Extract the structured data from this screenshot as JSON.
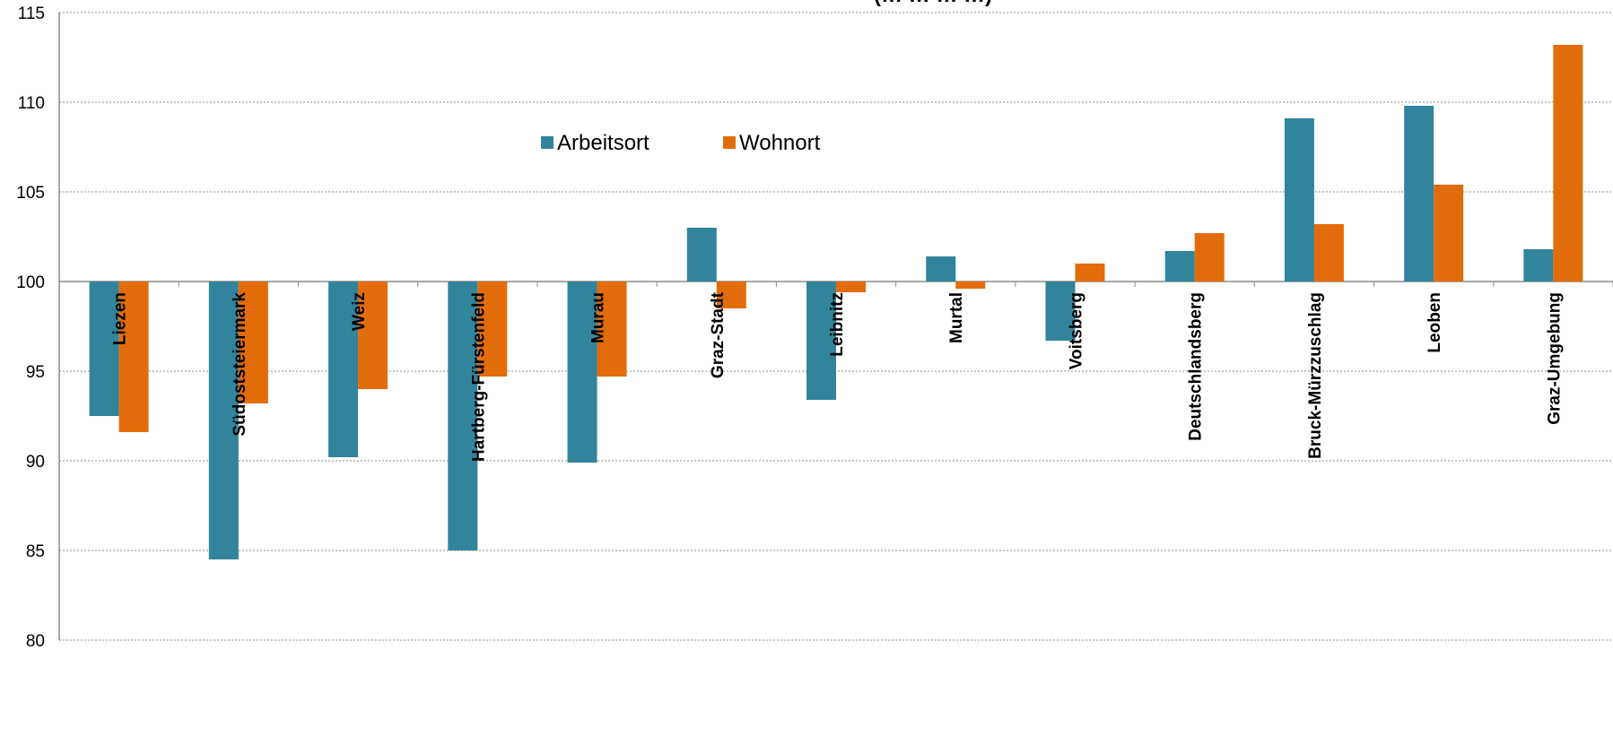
{
  "chart_data": {
    "type": "bar",
    "title": "(… … … …)",
    "xlabel": "",
    "ylabel": "",
    "ylim": [
      80,
      115
    ],
    "yticks": [
      80,
      85,
      90,
      95,
      100,
      105,
      110,
      115
    ],
    "baseline": 100,
    "grid": true,
    "legend_position": "top-center",
    "categories": [
      "Liezen",
      "Südoststeiermark",
      "Weiz",
      "Hartberg-Fürstenfeld",
      "Murau",
      "Graz-Stadt",
      "Leibnitz",
      "Murtal",
      "Voitsberg",
      "Deutschlandsberg",
      "Bruck-Mürzzuschlag",
      "Leoben",
      "Graz-Umgebung"
    ],
    "series": [
      {
        "name": "Arbeitsort",
        "color": "#31849b",
        "values": [
          92.5,
          84.5,
          90.2,
          85.0,
          89.9,
          103.0,
          93.4,
          101.4,
          96.7,
          101.7,
          109.1,
          109.8,
          101.8
        ]
      },
      {
        "name": "Wohnort",
        "color": "#e36c0a",
        "values": [
          91.6,
          93.2,
          94.0,
          94.7,
          94.7,
          98.5,
          99.4,
          99.6,
          101.0,
          102.7,
          103.2,
          105.4,
          113.2
        ]
      }
    ]
  }
}
